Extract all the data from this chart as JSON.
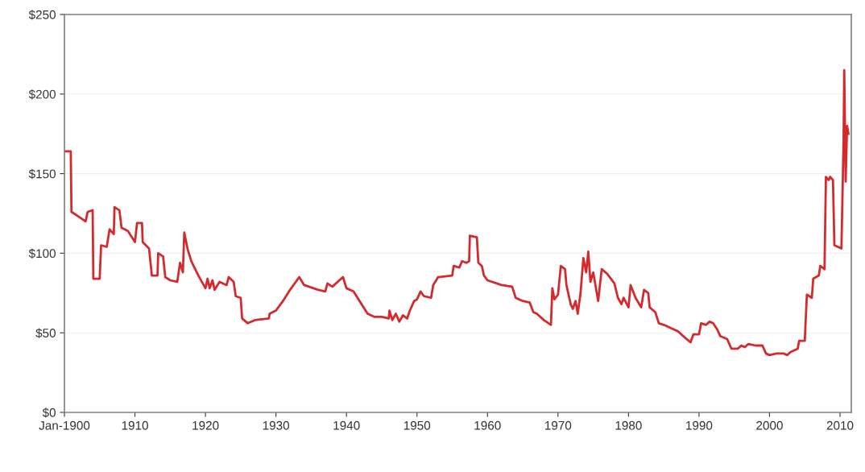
{
  "chart_data": {
    "type": "line",
    "series": [
      {
        "color": "#d42a2e",
        "x": [
          1900,
          1900.9,
          1901,
          1902,
          1903,
          1903.3,
          1904,
          1904.1,
          1905,
          1905.2,
          1906,
          1906.4,
          1907,
          1907.1,
          1907.8,
          1908.1,
          1909,
          1910,
          1910.3,
          1911,
          1911.1,
          1912,
          1912.4,
          1913.2,
          1913.3,
          1914,
          1914.3,
          1915,
          1916,
          1916.4,
          1916.8,
          1917,
          1917.5,
          1918,
          1919,
          1920,
          1920.3,
          1920.6,
          1921,
          1921.3,
          1922,
          1923,
          1923.3,
          1924,
          1924.3,
          1925,
          1925.2,
          1926,
          1927,
          1929,
          1929.1,
          1930,
          1931,
          1932,
          1933.3,
          1934,
          1936,
          1937,
          1937.3,
          1938,
          1939.5,
          1940,
          1941,
          1942,
          1943,
          1944,
          1945,
          1946,
          1946.1,
          1946.5,
          1947,
          1947.5,
          1948,
          1948.6,
          1949,
          1949.6,
          1950,
          1950.5,
          1951,
          1952,
          1952.3,
          1953,
          1955,
          1955.2,
          1956,
          1956.4,
          1957,
          1957.4,
          1957.5,
          1958.5,
          1958.7,
          1959.2,
          1959.5,
          1960,
          1962,
          1963.5,
          1964,
          1965,
          1966,
          1966.5,
          1967,
          1968,
          1969,
          1969.2,
          1969.5,
          1970,
          1970.4,
          1971,
          1971.2,
          1971.8,
          1972.1,
          1972.5,
          1972.8,
          1973.2,
          1973.6,
          1974,
          1974.3,
          1974.6,
          1975,
          1975.7,
          1976.2,
          1977,
          1978,
          1978.5,
          1979,
          1979.3,
          1980,
          1980.3,
          1981,
          1981.8,
          1982.2,
          1982.8,
          1983,
          1983.8,
          1984.3,
          1985,
          1986,
          1987,
          1988,
          1988.8,
          1989.2,
          1990,
          1990.3,
          1991,
          1991.5,
          1992,
          1992.6,
          1993,
          1994,
          1994.6,
          1995.5,
          1996,
          1996.5,
          1997,
          1998,
          1999,
          1999.5,
          2000,
          2001,
          2002,
          2002.5,
          2003,
          2004,
          2004.2,
          2005,
          2005.3,
          2006,
          2006.2,
          2007,
          2007.2,
          2007.8,
          2008,
          2008.4,
          2008.6,
          2009,
          2009.2,
          2010.2,
          2010.5,
          2010.6,
          2010.8,
          2011,
          2011.2
        ],
        "values": [
          164,
          164,
          126,
          123,
          120,
          126,
          127,
          84,
          84,
          105,
          104,
          115,
          112,
          129,
          127,
          116,
          114,
          107,
          119,
          119,
          107,
          103,
          86,
          86,
          100,
          98,
          85,
          83,
          82,
          94,
          88,
          113,
          102,
          95,
          86,
          78,
          84,
          78,
          83,
          77,
          82,
          80,
          85,
          82,
          73,
          72,
          59,
          56,
          58,
          59,
          62,
          64,
          70,
          77,
          85,
          80,
          77,
          76,
          81,
          79,
          85,
          78,
          76,
          69,
          62,
          60,
          60,
          59,
          64,
          58,
          62,
          57,
          61,
          59,
          64,
          70,
          71,
          76,
          73,
          72,
          80,
          85,
          86,
          92,
          91,
          95,
          94,
          95,
          111,
          110,
          94,
          92,
          86,
          83,
          80,
          79,
          72,
          70,
          69,
          63,
          62,
          58,
          55,
          78,
          71,
          74,
          92,
          90,
          80,
          68,
          65,
          70,
          62,
          75,
          97,
          88,
          101,
          82,
          88,
          70,
          90,
          87,
          81,
          72,
          68,
          72,
          66,
          80,
          72,
          66,
          77,
          75,
          66,
          63,
          56,
          55,
          53,
          51,
          47,
          44,
          49,
          49,
          56,
          55,
          57,
          56,
          52,
          48,
          46,
          40,
          40,
          42,
          41,
          43,
          42,
          42,
          37,
          36,
          37,
          37,
          36,
          38,
          40,
          45,
          45,
          74,
          72,
          84,
          86,
          92,
          90,
          148,
          146,
          148,
          146,
          105,
          103,
          170,
          215,
          145,
          180,
          175
        ]
      }
    ],
    "xlim": [
      1900,
      2011.6
    ],
    "xticks": [
      {
        "value": 1900,
        "label": "Jan-1900"
      },
      1910,
      1920,
      1930,
      1940,
      1950,
      1960,
      1970,
      1980,
      1990,
      2000,
      2010
    ],
    "ylim": [
      0,
      250
    ],
    "yticks": [
      {
        "value": 0,
        "label": "$0"
      },
      {
        "value": 50,
        "label": "$50"
      },
      {
        "value": 100,
        "label": "$100"
      },
      {
        "value": 150,
        "label": "$150"
      },
      {
        "value": 200,
        "label": "$200"
      },
      {
        "value": 250,
        "label": "$250"
      }
    ],
    "grid": "y",
    "legend": false,
    "marker": "none",
    "line_style": "solid"
  }
}
